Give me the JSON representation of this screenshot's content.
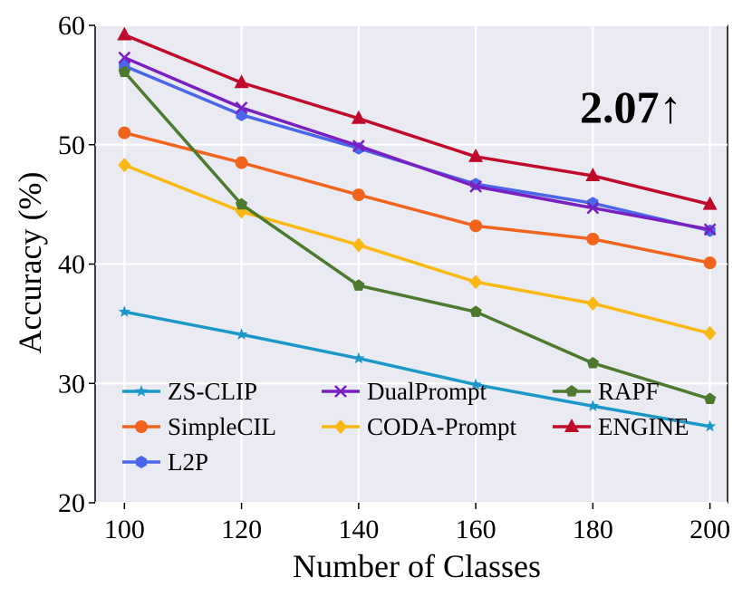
{
  "chart_data": {
    "type": "line",
    "xlabel": "Number of Classes",
    "ylabel": "Accuracy (%)",
    "x": [
      100,
      120,
      140,
      160,
      180,
      200
    ],
    "xticks": [
      "100",
      "120",
      "140",
      "160",
      "180",
      "200"
    ],
    "yticks": [
      "20",
      "30",
      "40",
      "50",
      "60"
    ],
    "xlim": [
      95,
      203
    ],
    "ylim": [
      20,
      60
    ],
    "grid": true,
    "background": "#eaeaf2",
    "legend_position": "bottom-left",
    "annotation": "2.07↑",
    "series": [
      {
        "name": "ZS-CLIP",
        "color": "#1b98c8",
        "marker": "star",
        "values": [
          36.0,
          34.1,
          32.1,
          29.9,
          28.1,
          26.4
        ]
      },
      {
        "name": "SimpleCIL",
        "color": "#f0641e",
        "marker": "circle",
        "values": [
          51.0,
          48.5,
          45.8,
          43.2,
          42.1,
          40.1
        ]
      },
      {
        "name": "L2P",
        "color": "#4a66ea",
        "marker": "hexagon",
        "values": [
          56.6,
          52.5,
          49.7,
          46.7,
          45.1,
          42.8
        ]
      },
      {
        "name": "DualPrompt",
        "color": "#7a1fc0",
        "marker": "x",
        "values": [
          57.3,
          53.1,
          49.9,
          46.5,
          44.7,
          42.9
        ]
      },
      {
        "name": "CODA-Prompt",
        "color": "#f9b812",
        "marker": "diamond",
        "values": [
          48.3,
          44.4,
          41.6,
          38.5,
          36.7,
          34.2
        ]
      },
      {
        "name": "RAPF",
        "color": "#4e7a30",
        "marker": "pentagon",
        "values": [
          56.1,
          45.0,
          38.2,
          36.0,
          31.7,
          28.7
        ]
      },
      {
        "name": "ENGINE",
        "color": "#c00a2b",
        "marker": "triangle",
        "values": [
          59.2,
          55.2,
          52.2,
          49.0,
          47.4,
          45.0
        ]
      }
    ],
    "legend_order": [
      "ZS-CLIP",
      "DualPrompt",
      "RAPF",
      "SimpleCIL",
      "CODA-Prompt",
      "ENGINE",
      "L2P"
    ]
  }
}
